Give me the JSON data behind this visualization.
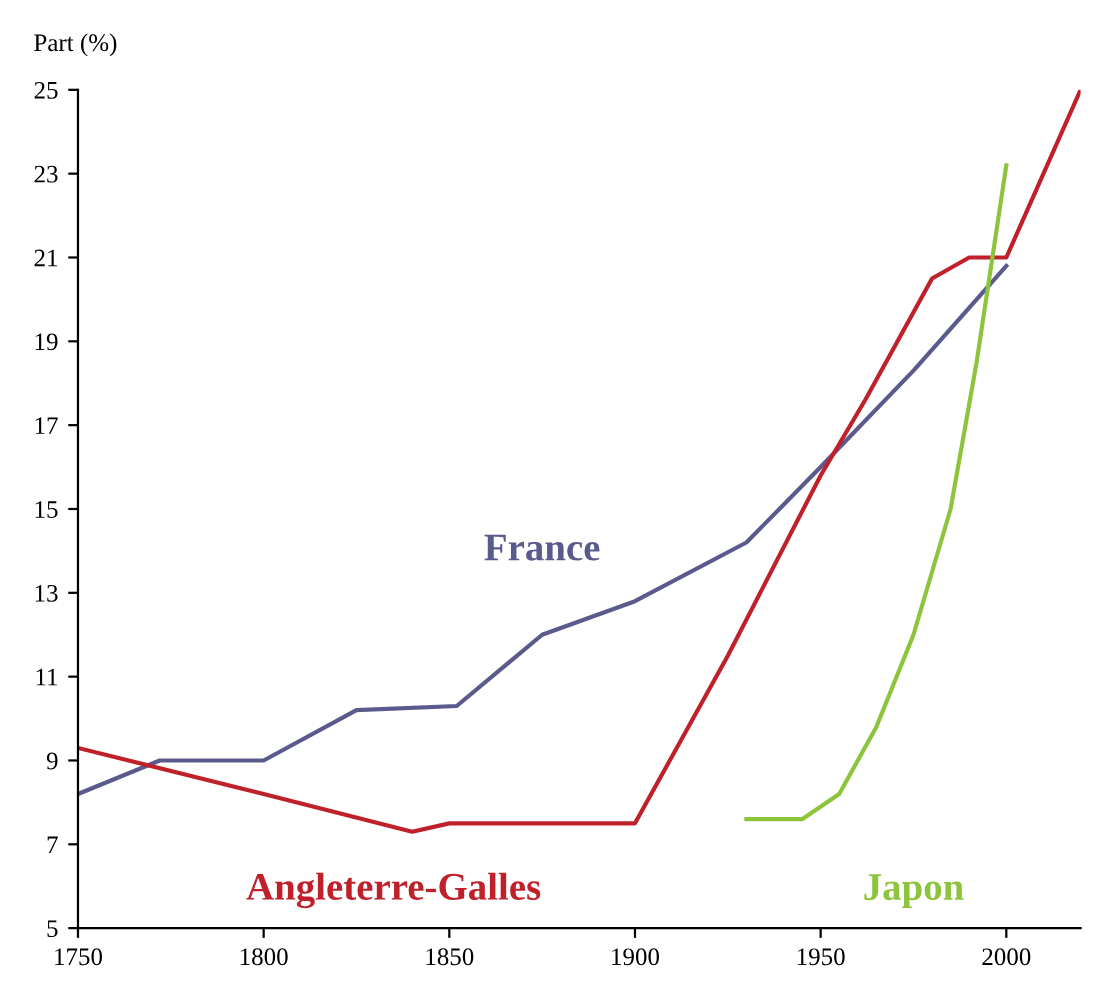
{
  "chart_data": {
    "type": "line",
    "ylabel": "Part (%)",
    "xlim": [
      1750,
      2020
    ],
    "xticks": [
      1750,
      1800,
      1850,
      1900,
      1950,
      2000
    ],
    "ylim": [
      5,
      25
    ],
    "yticks": [
      5,
      7,
      9,
      11,
      13,
      15,
      17,
      19,
      21,
      23,
      25
    ],
    "grid": false,
    "legend": false,
    "series": [
      {
        "name": "France",
        "color": "#5a5a8c",
        "x": [
          1750,
          1772,
          1800,
          1825,
          1852,
          1875,
          1900,
          1930,
          1950,
          1975,
          2000
        ],
        "values": [
          8.2,
          9,
          9,
          10.2,
          10.3,
          12,
          12.8,
          14.2,
          16,
          18.3,
          20.8
        ]
      },
      {
        "name": "Angleterre-Galles",
        "color": "#c0202a",
        "x": [
          1750,
          1800,
          1840,
          1850,
          1900,
          1925,
          1950,
          1962,
          1980,
          1990,
          2000,
          2020
        ],
        "values": [
          9.3,
          8.2,
          7.3,
          7.5,
          7.5,
          11.5,
          15.8,
          17.6,
          20.5,
          21,
          21,
          25
        ]
      },
      {
        "name": "Japon",
        "color": "#8cc43c",
        "x": [
          1930,
          1945,
          1955,
          1965,
          1975,
          1985,
          1992,
          2000
        ],
        "values": [
          7.6,
          7.6,
          8.2,
          9.8,
          12,
          15,
          18.5,
          23.2
        ]
      }
    ]
  }
}
